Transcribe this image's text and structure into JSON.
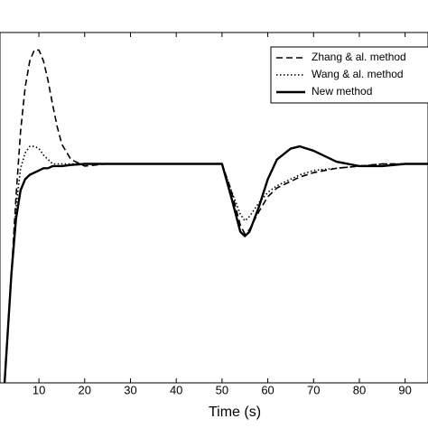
{
  "chart_data": {
    "type": "line",
    "x_label": "Time (s)",
    "x": [
      2.5,
      4,
      5,
      6,
      7,
      8,
      9,
      10,
      11,
      12,
      13,
      14,
      15,
      17,
      20,
      25,
      30,
      40,
      49.5,
      50,
      52,
      54,
      55,
      56,
      58,
      60,
      62,
      65,
      67,
      70,
      75,
      80,
      85,
      90,
      95
    ],
    "series": [
      {
        "name": "Zhang & al. method",
        "color": "#000000",
        "dash": "dashed",
        "values": [
          0,
          0.5,
          0.85,
          1.15,
          1.35,
          1.47,
          1.52,
          1.52,
          1.47,
          1.38,
          1.27,
          1.17,
          1.09,
          1.02,
          0.99,
          1.0,
          1.0,
          1.0,
          1.0,
          1.0,
          0.88,
          0.72,
          0.68,
          0.7,
          0.78,
          0.85,
          0.89,
          0.92,
          0.94,
          0.96,
          0.98,
          0.99,
          1.0,
          1.0,
          1.0
        ]
      },
      {
        "name": "Wang & al. method",
        "color": "#000000",
        "dash": "dotted",
        "values": [
          0,
          0.5,
          0.8,
          0.98,
          1.05,
          1.08,
          1.08,
          1.07,
          1.04,
          1.02,
          1.0,
          1.0,
          1.0,
          1.0,
          1.0,
          1.0,
          1.0,
          1.0,
          1.0,
          1.0,
          0.88,
          0.77,
          0.74,
          0.76,
          0.82,
          0.87,
          0.9,
          0.93,
          0.95,
          0.97,
          0.98,
          0.99,
          1.0,
          1.0,
          1.0
        ]
      },
      {
        "name": "New method",
        "color": "#000000",
        "dash": "solid",
        "values": [
          0,
          0.5,
          0.75,
          0.88,
          0.93,
          0.95,
          0.96,
          0.97,
          0.98,
          0.98,
          0.99,
          0.99,
          0.99,
          0.995,
          1.0,
          1.0,
          1.0,
          1.0,
          1.0,
          1.0,
          0.85,
          0.69,
          0.67,
          0.69,
          0.8,
          0.93,
          1.02,
          1.07,
          1.08,
          1.06,
          1.01,
          0.99,
          0.99,
          1.0,
          1.0
        ]
      }
    ],
    "xlim": [
      1.5,
      95
    ],
    "xticks": [
      10,
      20,
      30,
      40,
      50,
      60,
      70,
      80,
      90
    ],
    "ylim": [
      0,
      1.6
    ],
    "legend": "upper right"
  }
}
